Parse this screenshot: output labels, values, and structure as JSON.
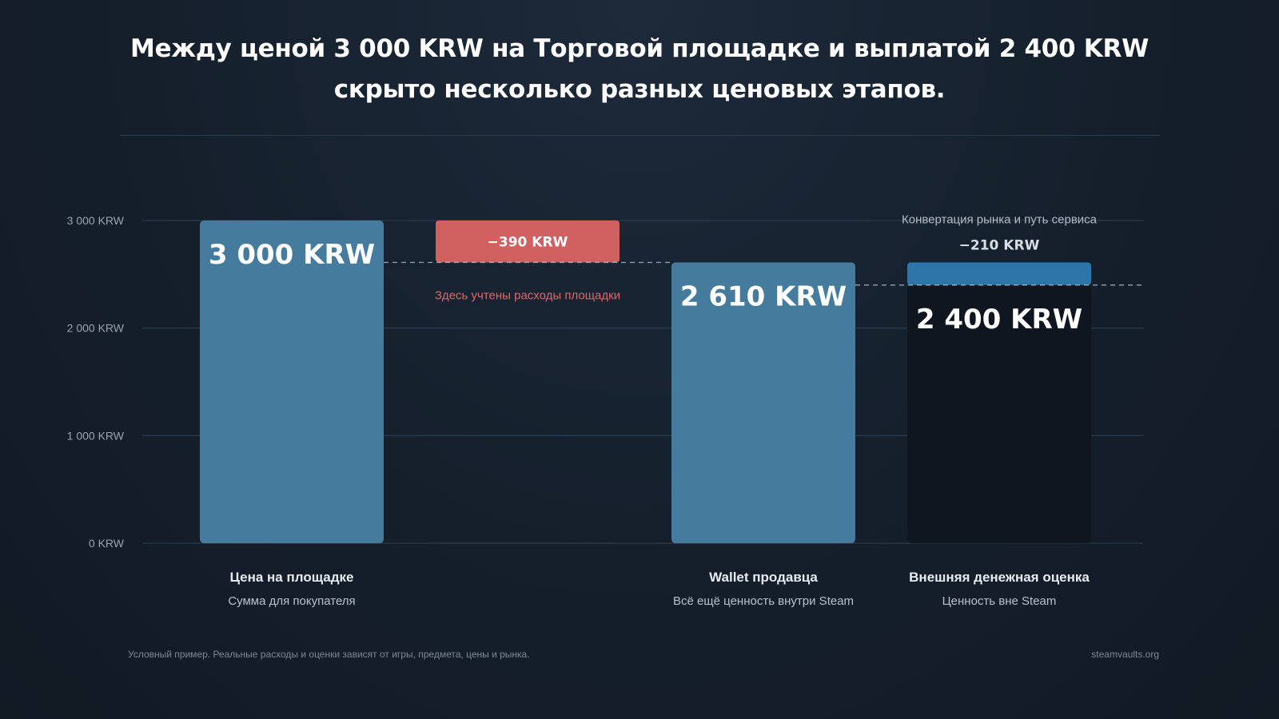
{
  "title_lines": [
    "Между ценой 3 000 KRW на Торговой площадке и выплатой 2 400 KRW",
    "скрыто несколько разных ценовых этапов."
  ],
  "footnote": "Условный пример. Реальные расходы и оценки зависят от игры, предмета, цены и рынка.",
  "site": "steamvaults.org",
  "colors": {
    "background": "#151f2c",
    "bar_steam": "#457b9d",
    "bar_external": "#0f161f",
    "fee_marketplace": "#d16060",
    "fee_conversion": "#2e76aa",
    "grid": "#2a3a4b",
    "axis_text": "#9aa4b0"
  },
  "chart_data": {
    "type": "bar",
    "subtype": "waterfall",
    "unit": "KRW",
    "ylim": [
      0,
      3000
    ],
    "yticks": [
      0,
      1000,
      2000,
      3000
    ],
    "ytick_labels": [
      "0 KRW",
      "1 000 KRW",
      "2 000 KRW",
      "3 000 KRW"
    ],
    "grid": true,
    "bars": [
      {
        "value": 3000,
        "kind": "total",
        "value_label": "3 000 KRW",
        "category": "Цена на площадке",
        "subcategory": "Сумма для покупателя",
        "color": "#457b9d"
      },
      {
        "from": 3000,
        "to": 2610,
        "kind": "decrease",
        "value_label": "−390 KRW",
        "note": "Здесь учтены расходы площадки",
        "color": "#d16060"
      },
      {
        "value": 2610,
        "kind": "total",
        "value_label": "2 610 KRW",
        "category": "Wallet продавца",
        "subcategory": "Всё ещё ценность внутри Steam",
        "color": "#457b9d"
      },
      {
        "value": 2400,
        "kind": "total",
        "value_label": "2 400 KRW",
        "category": "Внешняя денежная оценка",
        "subcategory": "Ценность вне Steam",
        "color": "#0f161f",
        "decrease": {
          "from": 2610,
          "to": 2400,
          "value_label": "−210 KRW",
          "note": "Конвертация рынка и путь сервиса",
          "color": "#2e76aa"
        }
      }
    ]
  }
}
